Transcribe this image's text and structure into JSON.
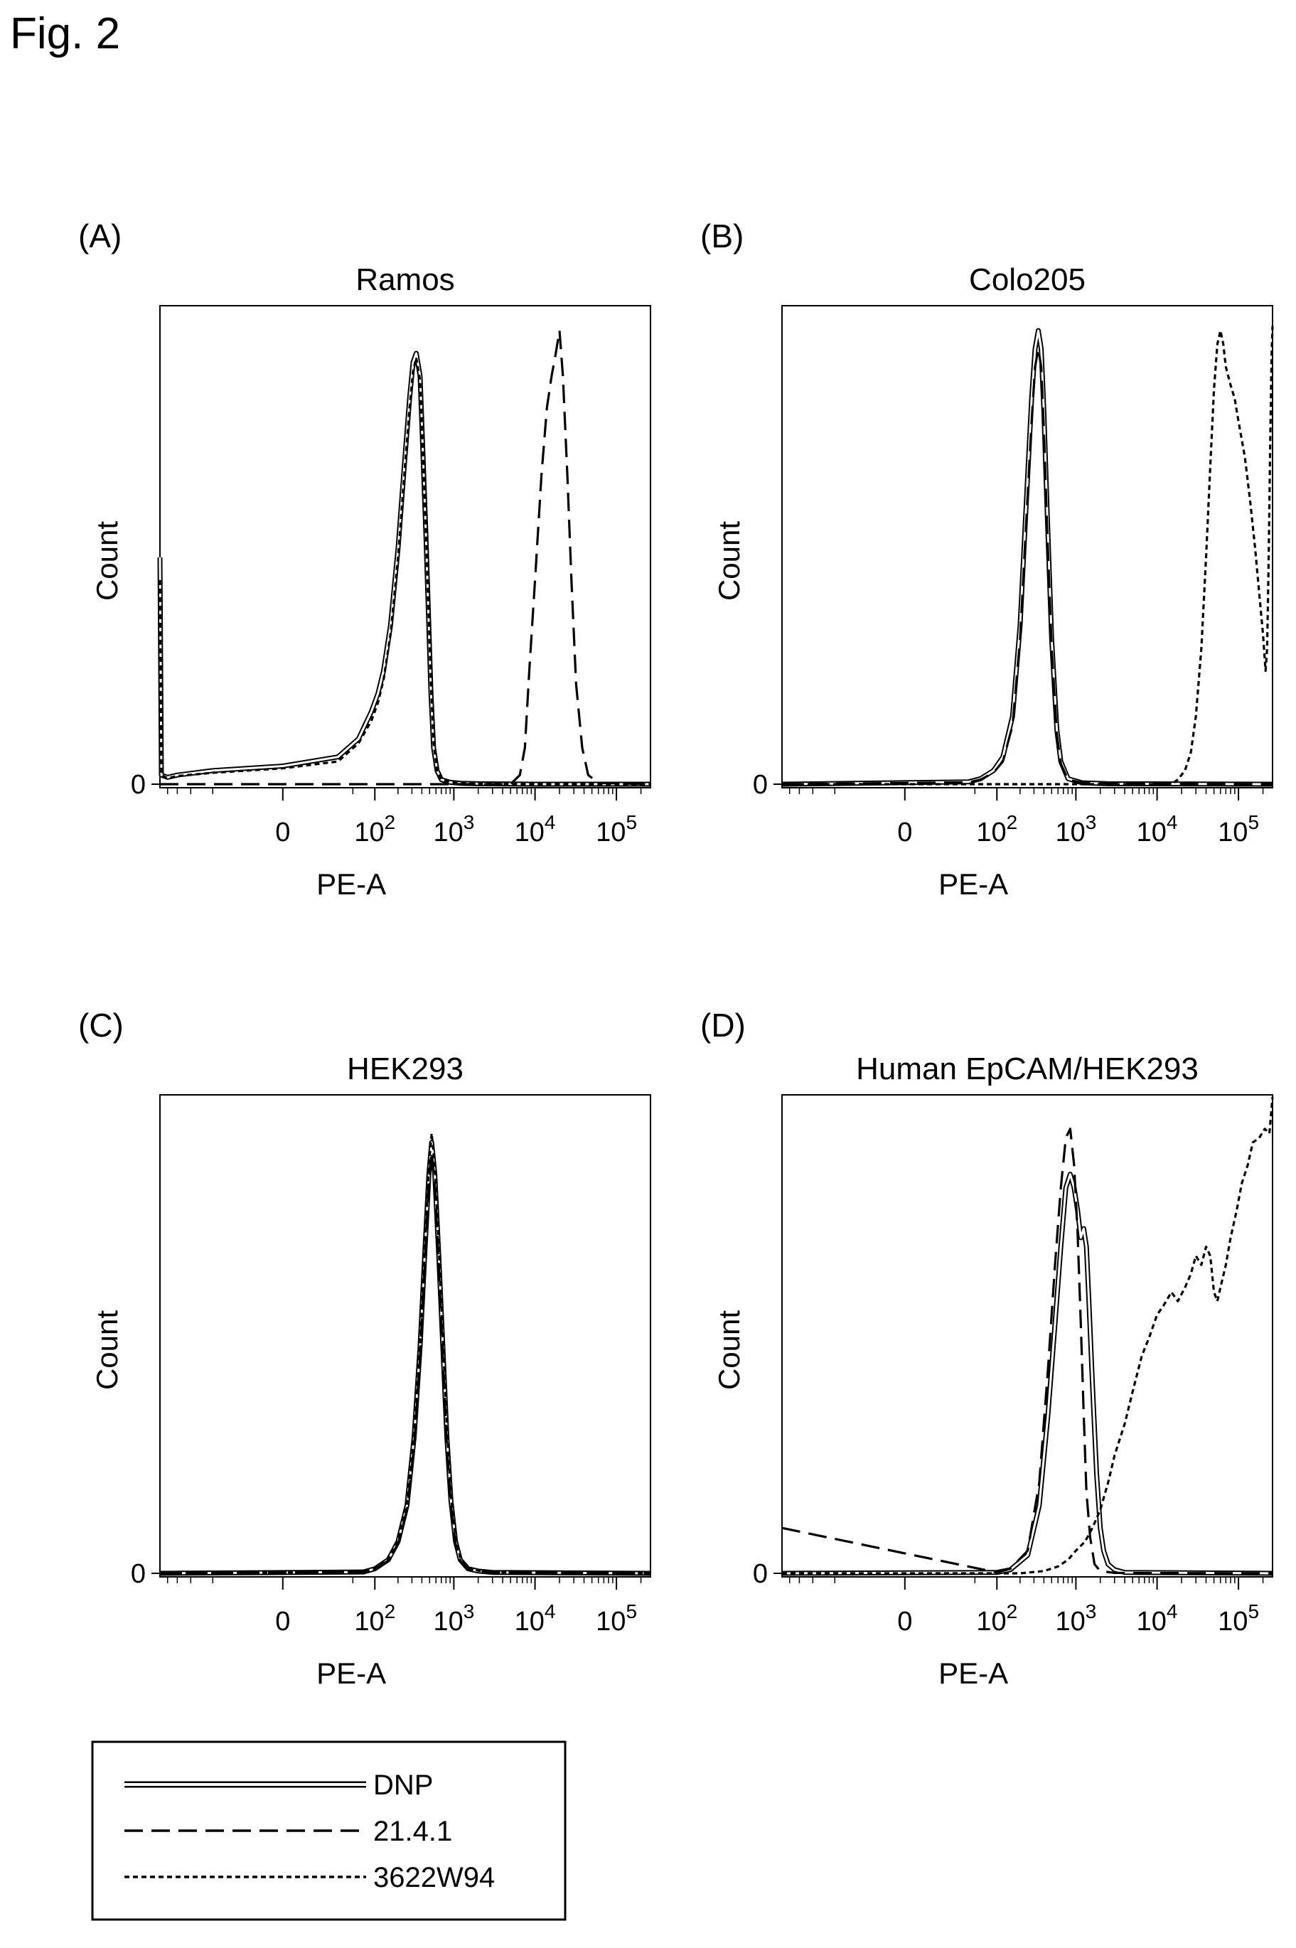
{
  "figure_title": "Fig. 2",
  "colors": {
    "ink": "#000000",
    "background": "#ffffff"
  },
  "legend": {
    "items": [
      {
        "label": "DNP",
        "style": "double"
      },
      {
        "label": "21.4.1",
        "style": "dashed"
      },
      {
        "label": "3622W94",
        "style": "dotted"
      }
    ]
  },
  "chart_data": [
    {
      "type": "line",
      "panel_label": "(A)",
      "title": "Ramos",
      "xlabel": "PE-A",
      "ylabel": "Count",
      "x_scale": "logicle",
      "x_ticks": [
        "0",
        "10^2",
        "10^3",
        "10^4",
        "10^5"
      ],
      "x_tick_values": [
        0,
        100,
        1000,
        10000,
        100000
      ],
      "y_ticks": [
        "0"
      ],
      "ylim": [
        0,
        1
      ],
      "series": [
        {
          "name": "DNP",
          "style": "double",
          "x": [
            -250,
            -240,
            -200,
            -150,
            -50,
            0,
            30,
            60,
            90,
            110,
            130,
            160,
            200,
            240,
            280,
            310,
            340,
            380,
            450,
            520,
            560,
            620,
            700,
            900,
            1200,
            2000,
            10000,
            100000,
            262000
          ],
          "y": [
            0.5,
            0.02,
            0.015,
            0.02,
            0.03,
            0.04,
            0.06,
            0.1,
            0.16,
            0.2,
            0.25,
            0.35,
            0.52,
            0.7,
            0.85,
            0.93,
            0.95,
            0.9,
            0.55,
            0.2,
            0.08,
            0.03,
            0.01,
            0.004,
            0.002,
            0.001,
            0,
            0,
            0
          ]
        },
        {
          "name": "21.4.1",
          "style": "dashed",
          "x": [
            -250,
            5000,
            6500,
            7500,
            8500,
            10000,
            12000,
            14000,
            16000,
            18000,
            20000,
            22000,
            25000,
            28000,
            32000,
            38000,
            45000,
            60000,
            262000
          ],
          "y": [
            0,
            0,
            0.02,
            0.08,
            0.25,
            0.45,
            0.68,
            0.83,
            0.9,
            0.95,
            1.0,
            0.9,
            0.68,
            0.45,
            0.22,
            0.08,
            0.02,
            0.003,
            0
          ]
        },
        {
          "name": "3622W94",
          "style": "dotted",
          "x": [
            -250,
            -240,
            -200,
            -150,
            -50,
            0,
            30,
            60,
            90,
            110,
            130,
            160,
            200,
            240,
            280,
            310,
            340,
            380,
            450,
            520,
            560,
            620,
            700,
            900,
            1200,
            2000,
            10000,
            100000,
            262000
          ],
          "y": [
            0.45,
            0.02,
            0.013,
            0.018,
            0.025,
            0.035,
            0.05,
            0.09,
            0.14,
            0.18,
            0.23,
            0.33,
            0.5,
            0.68,
            0.83,
            0.91,
            0.94,
            0.89,
            0.56,
            0.22,
            0.09,
            0.03,
            0.01,
            0.004,
            0.002,
            0.001,
            0,
            0,
            0
          ]
        }
      ]
    },
    {
      "type": "line",
      "panel_label": "(B)",
      "title": "Colo205",
      "xlabel": "PE-A",
      "ylabel": "Count",
      "x_scale": "logicle",
      "x_ticks": [
        "0",
        "10^2",
        "10^3",
        "10^4",
        "10^5"
      ],
      "x_tick_values": [
        0,
        100,
        1000,
        10000,
        100000
      ],
      "y_ticks": [
        "0"
      ],
      "ylim": [
        0,
        1
      ],
      "series": [
        {
          "name": "DNP",
          "style": "double",
          "x": [
            -250,
            40,
            60,
            90,
            120,
            160,
            200,
            240,
            280,
            310,
            340,
            370,
            400,
            440,
            500,
            580,
            650,
            800,
            1200,
            2500,
            262000
          ],
          "y": [
            0,
            0.005,
            0.012,
            0.03,
            0.06,
            0.15,
            0.35,
            0.62,
            0.85,
            0.96,
            1.0,
            0.96,
            0.82,
            0.6,
            0.32,
            0.12,
            0.05,
            0.012,
            0.003,
            0.001,
            0
          ]
        },
        {
          "name": "21.4.1",
          "style": "dashed",
          "x": [
            -250,
            40,
            60,
            90,
            120,
            160,
            200,
            240,
            280,
            310,
            340,
            370,
            400,
            440,
            500,
            580,
            650,
            800,
            1200,
            2500,
            262000
          ],
          "y": [
            0,
            0.004,
            0.01,
            0.025,
            0.05,
            0.13,
            0.32,
            0.58,
            0.8,
            0.92,
            0.96,
            0.92,
            0.78,
            0.56,
            0.3,
            0.11,
            0.045,
            0.01,
            0.003,
            0.001,
            0
          ]
        },
        {
          "name": "3622W94",
          "style": "dotted",
          "x": [
            -250,
            15000,
            18000,
            22000,
            26000,
            30000,
            35000,
            40000,
            45000,
            50000,
            55000,
            60000,
            65000,
            70000,
            80000,
            90000,
            100000,
            120000,
            140000,
            160000,
            180000,
            200000,
            215000,
            225000,
            235000,
            245000,
            255000,
            262000
          ],
          "y": [
            0,
            0,
            0.01,
            0.03,
            0.07,
            0.15,
            0.3,
            0.5,
            0.7,
            0.87,
            0.97,
            1.0,
            0.97,
            0.92,
            0.88,
            0.85,
            0.8,
            0.72,
            0.62,
            0.52,
            0.42,
            0.33,
            0.25,
            0.3,
            0.5,
            0.75,
            0.95,
            1.01
          ]
        }
      ]
    },
    {
      "type": "line",
      "panel_label": "(C)",
      "title": "HEK293",
      "xlabel": "PE-A",
      "ylabel": "Count",
      "x_scale": "logicle",
      "x_ticks": [
        "0",
        "10^2",
        "10^3",
        "10^4",
        "10^5"
      ],
      "x_tick_values": [
        0,
        100,
        1000,
        10000,
        100000
      ],
      "y_ticks": [
        "0"
      ],
      "ylim": [
        0,
        1
      ],
      "series": [
        {
          "name": "DNP",
          "style": "double",
          "x": [
            -250,
            70,
            100,
            150,
            200,
            260,
            320,
            380,
            440,
            490,
            530,
            580,
            650,
            730,
            820,
            920,
            1050,
            1200,
            1500,
            2000,
            3000,
            262000
          ],
          "y": [
            0,
            0.003,
            0.01,
            0.03,
            0.07,
            0.15,
            0.3,
            0.5,
            0.72,
            0.88,
            0.95,
            0.88,
            0.7,
            0.5,
            0.3,
            0.16,
            0.07,
            0.03,
            0.01,
            0.005,
            0.002,
            0
          ]
        },
        {
          "name": "21.4.1",
          "style": "dashed",
          "x": [
            -250,
            70,
            100,
            150,
            200,
            260,
            320,
            380,
            440,
            490,
            530,
            580,
            650,
            730,
            820,
            920,
            1050,
            1200,
            1500,
            2000,
            3000,
            262000
          ],
          "y": [
            0,
            0.003,
            0.01,
            0.028,
            0.065,
            0.14,
            0.28,
            0.48,
            0.7,
            0.87,
            0.93,
            0.86,
            0.68,
            0.48,
            0.28,
            0.15,
            0.065,
            0.028,
            0.01,
            0.005,
            0.002,
            0
          ]
        },
        {
          "name": "3622W94",
          "style": "dotted",
          "x": [
            -250,
            70,
            100,
            150,
            200,
            260,
            320,
            380,
            440,
            490,
            530,
            580,
            650,
            730,
            820,
            920,
            1050,
            1200,
            1500,
            2000,
            3000,
            262000
          ],
          "y": [
            0,
            0.003,
            0.01,
            0.03,
            0.07,
            0.15,
            0.3,
            0.5,
            0.73,
            0.9,
            0.97,
            0.9,
            0.72,
            0.52,
            0.32,
            0.17,
            0.08,
            0.035,
            0.012,
            0.006,
            0.002,
            0
          ]
        }
      ]
    },
    {
      "type": "line",
      "panel_label": "(D)",
      "title": "Human EpCAM/HEK293",
      "xlabel": "PE-A",
      "ylabel": "Count",
      "x_scale": "logicle",
      "x_ticks": [
        "0",
        "10^2",
        "10^3",
        "10^4",
        "10^5"
      ],
      "x_tick_values": [
        0,
        100,
        1000,
        10000,
        100000
      ],
      "y_ticks": [
        "0"
      ],
      "ylim": [
        0,
        1
      ],
      "series": [
        {
          "name": "DNP",
          "style": "double",
          "x": [
            -250,
            100,
            150,
            250,
            350,
            450,
            550,
            650,
            750,
            850,
            950,
            1050,
            1150,
            1250,
            1350,
            1450,
            1600,
            1800,
            2000,
            2200,
            2500,
            3000,
            4000,
            262000
          ],
          "y": [
            0,
            0.002,
            0.008,
            0.04,
            0.15,
            0.35,
            0.55,
            0.72,
            0.85,
            0.88,
            0.85,
            0.8,
            0.74,
            0.76,
            0.72,
            0.6,
            0.42,
            0.22,
            0.1,
            0.05,
            0.02,
            0.008,
            0.002,
            0
          ]
        },
        {
          "name": "21.4.1",
          "style": "dashed",
          "x": [
            -250,
            100,
            150,
            250,
            350,
            450,
            550,
            650,
            750,
            850,
            950,
            1050,
            1150,
            1250,
            1350,
            1500,
            1700,
            2000,
            3000,
            262000
          ],
          "y": [
            0.1,
            0.002,
            0.01,
            0.05,
            0.2,
            0.45,
            0.68,
            0.85,
            0.96,
            0.98,
            0.9,
            0.75,
            0.55,
            0.35,
            0.18,
            0.08,
            0.02,
            0.005,
            0.001,
            0
          ]
        },
        {
          "name": "3622W94",
          "style": "dotted",
          "x": [
            -250,
            200,
            400,
            600,
            800,
            1000,
            1300,
            1600,
            2000,
            2500,
            3000,
            4000,
            5000,
            6500,
            8000,
            10000,
            12000,
            15000,
            18000,
            22000,
            26000,
            30000,
            35000,
            40000,
            45000,
            50000,
            55000,
            60000,
            70000,
            80000,
            95000,
            110000,
            130000,
            150000,
            180000,
            210000,
            240000,
            262000
          ],
          "y": [
            0,
            0,
            0.005,
            0.015,
            0.03,
            0.05,
            0.07,
            0.1,
            0.14,
            0.2,
            0.26,
            0.33,
            0.4,
            0.48,
            0.52,
            0.57,
            0.59,
            0.62,
            0.6,
            0.63,
            0.66,
            0.7,
            0.68,
            0.72,
            0.7,
            0.62,
            0.6,
            0.63,
            0.68,
            0.74,
            0.8,
            0.86,
            0.9,
            0.95,
            0.96,
            0.98,
            0.97,
            1.05
          ]
        }
      ]
    }
  ]
}
